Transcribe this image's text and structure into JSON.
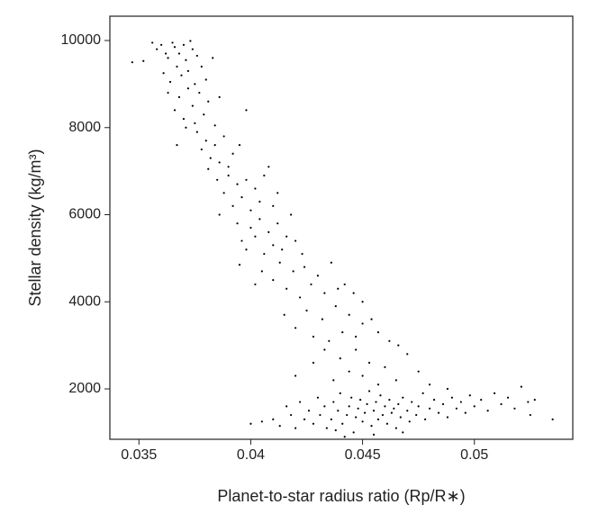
{
  "chart_data": {
    "type": "scatter",
    "xlabel": "Planet-to-star radius ratio (Rp/R∗)",
    "ylabel": "Stellar density (kg/m³)",
    "color": "#000000",
    "xlim": [
      0.0337,
      0.0544
    ],
    "ylim": [
      843,
      10558
    ],
    "xticks": [
      0.035,
      0.04,
      0.045,
      0.05
    ],
    "yticks": [
      2000,
      4000,
      6000,
      8000,
      10000
    ],
    "x": [
      0.0347,
      0.0352,
      0.0356,
      0.0358,
      0.036,
      0.0362,
      0.0363,
      0.0365,
      0.0366,
      0.0367,
      0.0368,
      0.0369,
      0.037,
      0.0371,
      0.0372,
      0.0373,
      0.0374,
      0.0375,
      0.0376,
      0.0378,
      0.038,
      0.0383,
      0.0364,
      0.0361,
      0.0363,
      0.0366,
      0.0368,
      0.037,
      0.0372,
      0.0374,
      0.0375,
      0.0377,
      0.0379,
      0.0381,
      0.0384,
      0.0386,
      0.0371,
      0.0367,
      0.0376,
      0.0378,
      0.038,
      0.0382,
      0.0384,
      0.0386,
      0.0388,
      0.039,
      0.0392,
      0.0381,
      0.0395,
      0.0398,
      0.0385,
      0.0388,
      0.039,
      0.0392,
      0.0394,
      0.0396,
      0.0398,
      0.04,
      0.0402,
      0.0404,
      0.0406,
      0.0408,
      0.0386,
      0.041,
      0.0412,
      0.0394,
      0.0396,
      0.0398,
      0.04,
      0.0402,
      0.0404,
      0.0406,
      0.0408,
      0.041,
      0.0412,
      0.0414,
      0.0416,
      0.0418,
      0.042,
      0.0423,
      0.0395,
      0.0402,
      0.0405,
      0.041,
      0.0413,
      0.0416,
      0.0419,
      0.0422,
      0.0424,
      0.0427,
      0.043,
      0.0433,
      0.0436,
      0.0439,
      0.0442,
      0.0446,
      0.045,
      0.0415,
      0.042,
      0.0425,
      0.0428,
      0.0432,
      0.0435,
      0.0438,
      0.0441,
      0.0444,
      0.0447,
      0.045,
      0.0454,
      0.0457,
      0.0462,
      0.0466,
      0.042,
      0.0428,
      0.0433,
      0.0437,
      0.044,
      0.0444,
      0.0447,
      0.045,
      0.0453,
      0.0457,
      0.046,
      0.0465,
      0.047,
      0.0475,
      0.048,
      0.0488,
      0.04,
      0.0405,
      0.041,
      0.0413,
      0.0416,
      0.0418,
      0.042,
      0.0422,
      0.0424,
      0.0426,
      0.0428,
      0.043,
      0.0431,
      0.0433,
      0.0434,
      0.0436,
      0.0437,
      0.0439,
      0.044,
      0.0441,
      0.0443,
      0.0444,
      0.0445,
      0.0446,
      0.0447,
      0.0448,
      0.0449,
      0.045,
      0.0451,
      0.0452,
      0.0453,
      0.0454,
      0.0455,
      0.0456,
      0.0457,
      0.0458,
      0.0459,
      0.046,
      0.0461,
      0.0462,
      0.0463,
      0.0464,
      0.0465,
      0.0466,
      0.0467,
      0.0468,
      0.047,
      0.0471,
      0.0472,
      0.0474,
      0.0475,
      0.0477,
      0.0478,
      0.048,
      0.0482,
      0.0484,
      0.0486,
      0.0488,
      0.049,
      0.0492,
      0.0494,
      0.0496,
      0.0498,
      0.05,
      0.0503,
      0.0506,
      0.0509,
      0.0512,
      0.0515,
      0.0518,
      0.0521,
      0.0524,
      0.0527,
      0.0535,
      0.0525,
      0.0442,
      0.0455,
      0.0438,
      0.0468
    ],
    "values": [
      9500,
      9530,
      9950,
      9800,
      9900,
      9700,
      9600,
      9950,
      9850,
      9400,
      9700,
      9200,
      9900,
      9550,
      9300,
      9990,
      9800,
      9000,
      9650,
      9400,
      9100,
      9600,
      9050,
      9250,
      8800,
      8400,
      8700,
      8200,
      8900,
      8500,
      8100,
      8800,
      8300,
      8600,
      8050,
      8700,
      8000,
      7600,
      7900,
      7500,
      7700,
      7300,
      7600,
      7200,
      7800,
      7100,
      7400,
      7050,
      7600,
      8400,
      6800,
      6500,
      6900,
      6200,
      6700,
      6400,
      6800,
      6100,
      6600,
      6300,
      6900,
      7100,
      6000,
      6200,
      6500,
      5800,
      5400,
      5200,
      5700,
      5500,
      5900,
      5100,
      5600,
      5300,
      5800,
      5200,
      5500,
      6000,
      5400,
      5100,
      4850,
      4400,
      4700,
      4500,
      4900,
      4300,
      4700,
      4100,
      4800,
      4400,
      4600,
      4200,
      4900,
      4300,
      4400,
      4200,
      4000,
      3700,
      3400,
      3800,
      3200,
      3600,
      3100,
      3900,
      3300,
      3700,
      3200,
      3500,
      3600,
      3300,
      3100,
      3000,
      2300,
      2600,
      2900,
      2200,
      2700,
      2400,
      2900,
      2300,
      2600,
      2100,
      2500,
      2200,
      2800,
      2400,
      2100,
      2000,
      1200,
      1250,
      1300,
      1150,
      1600,
      1400,
      1100,
      1700,
      1300,
      1500,
      1200,
      1800,
      1400,
      1600,
      1100,
      1300,
      1700,
      1500,
      1900,
      1200,
      1400,
      1600,
      1800,
      1000,
      1350,
      1550,
      1750,
      1250,
      1450,
      1650,
      1950,
      1150,
      1500,
      1700,
      1300,
      1850,
      1400,
      1600,
      1200,
      1750,
      1450,
      1550,
      1100,
      1650,
      1350,
      1800,
      1500,
      1250,
      1700,
      1400,
      1600,
      1900,
      1300,
      1550,
      1750,
      1450,
      1650,
      1350,
      1800,
      1550,
      1700,
      1450,
      1850,
      1600,
      1750,
      1500,
      1900,
      1650,
      1800,
      1550,
      2050,
      1700,
      1750,
      1300,
      1400,
      900,
      950,
      1050,
      1000
    ]
  }
}
